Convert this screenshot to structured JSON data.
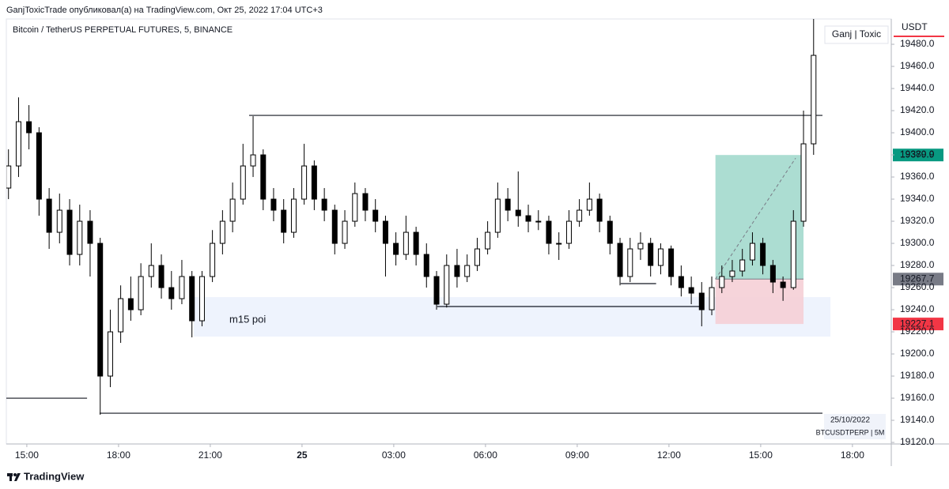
{
  "header": {
    "author_line": "GanjToxicTrade опубликовал(а) на TradingView.com, Окт 25, 2022 17:04 UTC+3",
    "brand": "TradingView"
  },
  "chart_data": {
    "type": "candlestick",
    "title": "Bitcoin / TetherUS PERPETUAL FUTURES, 5, BINANCE",
    "watermark": "Ganj | Toxic",
    "currency": "USDT",
    "date_label": "25/10/2022",
    "symbol_label": "BTCUSDTPERP | 5M",
    "up_color": "#ffffff",
    "down_color": "#000000",
    "wick_color": "#000000",
    "grid": false,
    "x": [
      14.4,
      14.73,
      15.07,
      15.4,
      15.73,
      16.07,
      16.4,
      16.73,
      17.07,
      17.4,
      17.73,
      18.07,
      18.4,
      18.73,
      19.07,
      19.4,
      19.73,
      20.07,
      20.4,
      20.73,
      21.07,
      21.4,
      21.73,
      22.07,
      22.4,
      22.73,
      23.07,
      23.4,
      23.73,
      24.07,
      24.4,
      24.73,
      25.07,
      25.4,
      25.73,
      26.07,
      26.4,
      26.73,
      27.07,
      27.4,
      27.73,
      28.07,
      28.4,
      28.73,
      29.07,
      29.4,
      29.73,
      30.07,
      30.4,
      30.73,
      31.07,
      31.4,
      31.73,
      32.07,
      32.4,
      32.73,
      33.07,
      33.4,
      33.73,
      34.07,
      34.4,
      34.73,
      35.07,
      35.4,
      35.73,
      36.07,
      36.4,
      36.73,
      37.07,
      37.4,
      37.73,
      38.07,
      38.4,
      38.73,
      39.07,
      39.4,
      39.73,
      40.07,
      40.4,
      40.73
    ],
    "open": [
      19350,
      19370,
      19410,
      19400,
      19340,
      19310,
      19330,
      19290,
      19320,
      19300,
      19180,
      19220,
      19250,
      19240,
      19270,
      19280,
      19260,
      19250,
      19270,
      19230,
      19270,
      19300,
      19320,
      19340,
      19370,
      19380,
      19340,
      19330,
      19310,
      19340,
      19370,
      19340,
      19330,
      19300,
      19320,
      19345,
      19330,
      19320,
      19300,
      19290,
      19310,
      19290,
      19270,
      19245,
      19280,
      19270,
      19280,
      19295,
      19310,
      19340,
      19330,
      19325,
      19320,
      19320,
      19300,
      19300,
      19320,
      19330,
      19340,
      19320,
      19300,
      19270,
      19295,
      19300,
      19280,
      19295,
      19270,
      19260,
      19255,
      19240,
      19260,
      19270,
      19275,
      19285,
      19300,
      19280,
      19265,
      19260,
      19320,
      19390
    ],
    "high": [
      19385,
      19432,
      19425,
      19405,
      19350,
      19345,
      19340,
      19335,
      19330,
      19305,
      19240,
      19262,
      19270,
      19282,
      19300,
      19290,
      19275,
      19285,
      19275,
      19275,
      19312,
      19330,
      19355,
      19390,
      19415,
      19385,
      19350,
      19340,
      19350,
      19390,
      19375,
      19350,
      19335,
      19330,
      19355,
      19350,
      19340,
      19325,
      19310,
      19325,
      19315,
      19300,
      19275,
      19290,
      19295,
      19290,
      19305,
      19320,
      19355,
      19350,
      19365,
      19335,
      19330,
      19325,
      19310,
      19330,
      19340,
      19355,
      19345,
      19325,
      19305,
      19305,
      19310,
      19305,
      19300,
      19298,
      19280,
      19270,
      19265,
      19270,
      19280,
      19285,
      19295,
      19310,
      19305,
      19285,
      19270,
      19330,
      19420,
      19505
    ],
    "low": [
      19340,
      19360,
      19385,
      19325,
      19295,
      19300,
      19280,
      19280,
      19270,
      19145,
      19170,
      19210,
      19230,
      19235,
      19260,
      19250,
      19240,
      19245,
      19215,
      19225,
      19265,
      19290,
      19310,
      19335,
      19360,
      19330,
      19320,
      19300,
      19305,
      19335,
      19330,
      19320,
      19290,
      19295,
      19315,
      19320,
      19310,
      19270,
      19280,
      19285,
      19280,
      19260,
      19240,
      19242,
      19260,
      19265,
      19275,
      19290,
      19305,
      19320,
      19315,
      19310,
      19312,
      19290,
      19285,
      19295,
      19315,
      19325,
      19310,
      19290,
      19262,
      19265,
      19285,
      19270,
      19272,
      19262,
      19252,
      19245,
      19225,
      19235,
      19255,
      19265,
      19270,
      19280,
      19272,
      19255,
      19248,
      19258,
      19315,
      19380
    ],
    "close": [
      19370,
      19410,
      19400,
      19340,
      19310,
      19330,
      19290,
      19320,
      19300,
      19180,
      19220,
      19250,
      19240,
      19270,
      19280,
      19260,
      19250,
      19270,
      19230,
      19270,
      19300,
      19320,
      19340,
      19370,
      19380,
      19340,
      19330,
      19310,
      19340,
      19370,
      19340,
      19330,
      19300,
      19320,
      19345,
      19330,
      19320,
      19300,
      19290,
      19310,
      19290,
      19270,
      19245,
      19280,
      19270,
      19280,
      19295,
      19310,
      19340,
      19330,
      19325,
      19320,
      19320,
      19300,
      19300,
      19320,
      19330,
      19340,
      19320,
      19300,
      19270,
      19295,
      19300,
      19280,
      19295,
      19270,
      19260,
      19255,
      19240,
      19260,
      19270,
      19275,
      19285,
      19300,
      19280,
      19265,
      19260,
      19320,
      19390,
      19470
    ],
    "xlim": [
      14.33,
      43.27
    ],
    "xticks": [
      {
        "value": 15,
        "label": "15:00"
      },
      {
        "value": 18,
        "label": "18:00"
      },
      {
        "value": 21,
        "label": "21:00"
      },
      {
        "value": 24,
        "label": "25"
      },
      {
        "value": 27,
        "label": "03:00"
      },
      {
        "value": 30,
        "label": "06:00"
      },
      {
        "value": 33,
        "label": "09:00"
      },
      {
        "value": 36,
        "label": "12:00"
      },
      {
        "value": 39,
        "label": "15:00"
      },
      {
        "value": 42,
        "label": "18:00"
      }
    ],
    "ylim": [
      19118.6,
      19502.9
    ],
    "yticks": [
      {
        "value": 19120,
        "label": "19120.0"
      },
      {
        "value": 19140,
        "label": "19140.0"
      },
      {
        "value": 19160,
        "label": "19160.0"
      },
      {
        "value": 19180,
        "label": "19180.0"
      },
      {
        "value": 19200,
        "label": "19200.0"
      },
      {
        "value": 19220,
        "label": "19220.0"
      },
      {
        "value": 19240,
        "label": "19240.0"
      },
      {
        "value": 19260,
        "label": "19260.0"
      },
      {
        "value": 19280,
        "label": "19280.0"
      },
      {
        "value": 19300,
        "label": "19300.0"
      },
      {
        "value": 19320,
        "label": "19320.0"
      },
      {
        "value": 19340,
        "label": "19340.0"
      },
      {
        "value": 19360,
        "label": "19360.0"
      },
      {
        "value": 19380,
        "label": "19380.0"
      },
      {
        "value": 19400,
        "label": "19400.0"
      },
      {
        "value": 19420,
        "label": "19420.0"
      },
      {
        "value": 19440,
        "label": "19440.0"
      },
      {
        "value": 19460,
        "label": "19460.0"
      },
      {
        "value": 19480,
        "label": "19480.0"
      }
    ],
    "levels": [
      {
        "price": 19415.7,
        "from": 22.27,
        "to": 41.02
      },
      {
        "price": 19242.9,
        "from": 28.42,
        "to": 37.01
      },
      {
        "price": 19263.6,
        "from": 34.42,
        "to": 35.58
      },
      {
        "price": 19146.4,
        "from": 17.38,
        "to": 41.02
      },
      {
        "price": 19160,
        "from": 14.33,
        "to": 16.97
      }
    ],
    "zone": {
      "label": "m15 poi",
      "top": 19251.4,
      "bottom": 19215.7,
      "from": 20.46,
      "to": 41.28,
      "color": "#eef3fd"
    },
    "position": {
      "entry": 19267.7,
      "target": 19379.9,
      "stop": 19227.1,
      "from": 37.52,
      "to": 40.4,
      "profit_color": "#a3d9cd",
      "loss_color": "#f5cfd6",
      "entry_color": "#787b86",
      "target_color": "#089981",
      "stop_color": "#f23645"
    }
  }
}
